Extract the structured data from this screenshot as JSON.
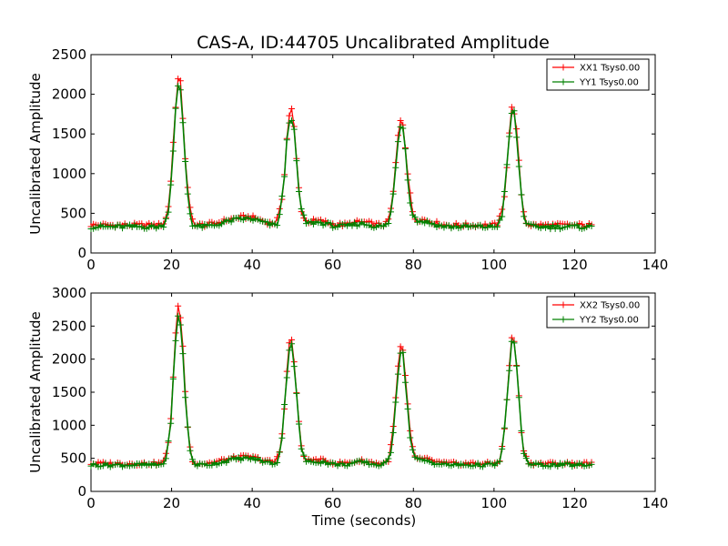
{
  "figure_title": "CAS-A, ID:44705 Uncalibrated Amplitude",
  "chart_data": [
    {
      "type": "line",
      "xlabel": "",
      "ylabel": "Uncalibrated Amplitude",
      "xlim": [
        0,
        140
      ],
      "ylim": [
        0,
        2500
      ],
      "xticks": [
        0,
        20,
        40,
        60,
        80,
        100,
        120,
        140
      ],
      "yticks": [
        0,
        500,
        1000,
        1500,
        2000,
        2500
      ],
      "legend_position": "top-right",
      "series": [
        {
          "name": "XX1 Tsys0.00",
          "color": "#ff0000",
          "marker": "+",
          "baseline": 350,
          "peak_heights": [
            2200,
            1810,
            1700,
            1840
          ],
          "offset": 0
        },
        {
          "name": "YY1 Tsys0.00",
          "color": "#008000",
          "marker": "+",
          "baseline": 330,
          "peak_heights": [
            2100,
            1740,
            1640,
            1790
          ],
          "offset": 1
        }
      ]
    },
    {
      "type": "line",
      "xlabel": "Time (seconds)",
      "ylabel": "Uncalibrated Amplitude",
      "xlim": [
        0,
        140
      ],
      "ylim": [
        0,
        3000
      ],
      "xticks": [
        0,
        20,
        40,
        60,
        80,
        100,
        120,
        140
      ],
      "yticks": [
        0,
        500,
        1000,
        1500,
        2000,
        2500,
        3000
      ],
      "legend_position": "top-right",
      "series": [
        {
          "name": "XX2 Tsys0.00",
          "color": "#ff0000",
          "marker": "+",
          "baseline": 420,
          "peak_heights": [
            2780,
            2300,
            2170,
            2330
          ],
          "offset": 2
        },
        {
          "name": "YY2 Tsys0.00",
          "color": "#008000",
          "marker": "+",
          "baseline": 400,
          "peak_heights": [
            2650,
            2250,
            2120,
            2280
          ],
          "offset": 3
        }
      ]
    }
  ],
  "shared_signal": {
    "x_start": 0,
    "x_end": 124.5,
    "sample_step": 0.6,
    "peak_centers": [
      21.8,
      49.6,
      77.0,
      104.7
    ],
    "peak_width": 1.3,
    "bumps": [
      {
        "center": 35,
        "width": 3,
        "amp": 60
      },
      {
        "center": 40,
        "width": 3,
        "amp": 80
      },
      {
        "center": 56,
        "width": 2.5,
        "amp": 55
      },
      {
        "center": 67,
        "width": 2,
        "amp": 40
      },
      {
        "center": 82,
        "width": 2.5,
        "amp": 70
      }
    ]
  }
}
